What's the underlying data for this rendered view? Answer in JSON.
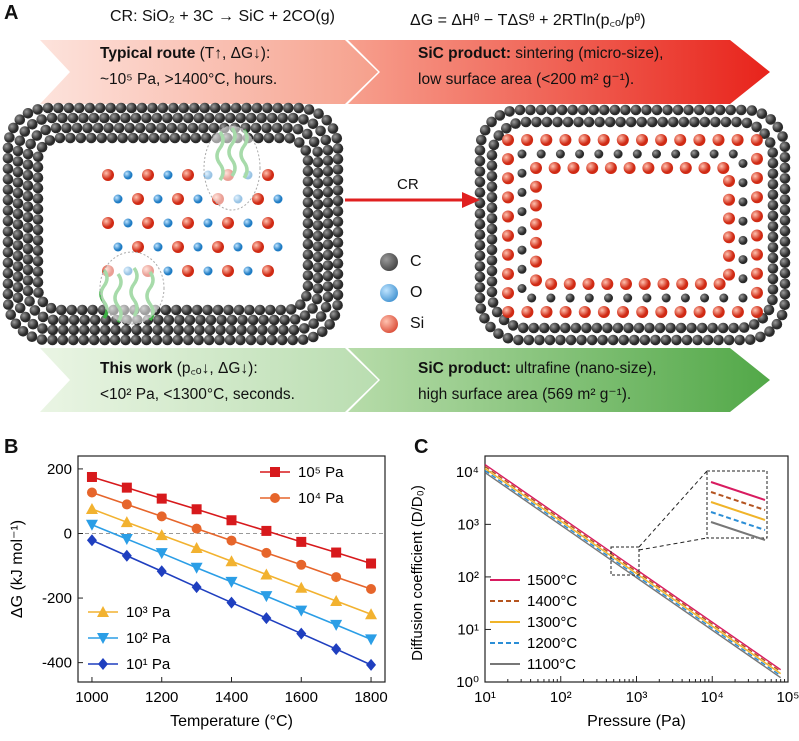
{
  "panelA": {
    "letter": "A",
    "eq1": "CR: SiO₂ + 3C → SiC + 2CO(g)",
    "eq2": "ΔG = ΔHᶿ − TΔSᶿ + 2RTln(p꜀ₒ/pᶿ)",
    "top_left_title": "Typical route",
    "top_left_title_rest": " (T↑, ΔG↓):",
    "top_left_line2": "~10⁵ Pa, >1400°C, hours.",
    "top_right_title": "SiC product:",
    "top_right_title_rest": " sintering (micro-size),",
    "top_right_line2": "low surface area (<200 m² g⁻¹).",
    "bottom_left_title": "This work",
    "bottom_left_title_rest": " (p꜀ₒ↓, ΔG↓):",
    "bottom_left_line2": "<10² Pa, <1300°C, seconds.",
    "bottom_right_title": "SiC product:",
    "bottom_right_title_rest": " ultrafine (nano-size),",
    "bottom_right_line2": "high surface area (569 m² g⁻¹).",
    "arrow_label": "CR",
    "legend": [
      {
        "label": "C",
        "color": "#3a3a3a"
      },
      {
        "label": "O",
        "color": "#2f8fd6"
      },
      {
        "label": "Si",
        "color": "#e0402a"
      }
    ],
    "colors": {
      "top_band": "#e53935",
      "bottom_band": "#4caf50",
      "carbon": "#3a3a3a",
      "oxygen": "#2f8fd6",
      "silicon": "#e0402a",
      "flame": "#3cb043"
    }
  },
  "chart_data": [
    {
      "panel": "B",
      "type": "line",
      "xlabel": "Temperature (°C)",
      "ylabel": "ΔG (kJ mol⁻¹)",
      "xlim": [
        960,
        1840
      ],
      "ylim": [
        -460,
        240
      ],
      "xticks": [
        1000,
        1200,
        1400,
        1600,
        1800
      ],
      "yticks": [
        200,
        0,
        -200,
        -400
      ],
      "x": [
        1000,
        1100,
        1200,
        1300,
        1400,
        1500,
        1600,
        1700,
        1800
      ],
      "series": [
        {
          "name": "10⁵ Pa",
          "color": "#d7191c",
          "marker": "square",
          "values": [
            175,
            142,
            108,
            75,
            41,
            8,
            -26,
            -59,
            -93
          ]
        },
        {
          "name": "10⁴ Pa",
          "color": "#e6652b",
          "marker": "circle",
          "values": [
            127,
            90,
            53,
            15,
            -22,
            -60,
            -97,
            -135,
            -172
          ]
        },
        {
          "name": "10³ Pa",
          "color": "#f2b230",
          "marker": "triangle-up",
          "values": [
            76,
            35,
            -5,
            -45,
            -86,
            -127,
            -168,
            -209,
            -250
          ]
        },
        {
          "name": "10² Pa",
          "color": "#2b9ee6",
          "marker": "triangle-down",
          "values": [
            27,
            -17,
            -61,
            -106,
            -150,
            -194,
            -239,
            -283,
            -328
          ]
        },
        {
          "name": "10¹ Pa",
          "color": "#1f3fbf",
          "marker": "diamond",
          "values": [
            -21,
            -69,
            -117,
            -166,
            -214,
            -262,
            -310,
            -358,
            -407
          ]
        }
      ],
      "reference_line": 0
    },
    {
      "panel": "C",
      "type": "line",
      "xscale": "log",
      "yscale": "log",
      "xlabel": "Pressure (Pa)",
      "ylabel": "Diffusion coefficient (D/D₀)",
      "xlim": [
        10,
        100000
      ],
      "ylim": [
        1,
        20000
      ],
      "xticks": [
        "10¹",
        "10²",
        "10³",
        "10⁴",
        "10⁵"
      ],
      "yticks": [
        "10⁰",
        "10¹",
        "10²",
        "10³",
        "10⁴"
      ],
      "series": [
        {
          "name": "1500°C",
          "color": "#d81b60",
          "dash": "solid",
          "factor": 1.25
        },
        {
          "name": "1400°C",
          "color": "#b5541f",
          "dash": "dashed",
          "factor": 1.15
        },
        {
          "name": "1300°C",
          "color": "#f0b429",
          "dash": "solid",
          "factor": 1.05
        },
        {
          "name": "1200°C",
          "color": "#2b8ed6",
          "dash": "dashed",
          "factor": 0.96
        },
        {
          "name": "1100°C",
          "color": "#777777",
          "dash": "solid",
          "factor": 0.88
        }
      ],
      "relation": "D/D0 ∝ 1/P",
      "base_value_at_10Pa": 11000
    }
  ],
  "panelB": {
    "letter": "B"
  },
  "panelC": {
    "letter": "C"
  }
}
